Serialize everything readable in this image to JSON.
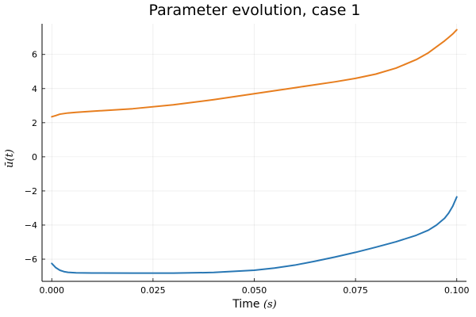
{
  "chart_data": {
    "type": "line",
    "title": "Parameter evolution, case 1",
    "xlabel": "Time ",
    "xlabel_math": "(s)",
    "ylabel": "ū(t)",
    "xlim": [
      -0.0024,
      0.1024
    ],
    "ylim": [
      -7.3,
      7.8
    ],
    "xticks": [
      0.0,
      0.025,
      0.05,
      0.075,
      0.1
    ],
    "xtick_labels": [
      "0.000",
      "0.025",
      "0.050",
      "0.075",
      "0.100"
    ],
    "yticks": [
      -6,
      -4,
      -2,
      0,
      2,
      4,
      6
    ],
    "ytick_labels": [
      "−6",
      "−4",
      "−2",
      "0",
      "2",
      "4",
      "6"
    ],
    "grid": true,
    "legend": "none",
    "series": [
      {
        "color": "#2877b4",
        "x": [
          0.0,
          0.001,
          0.002,
          0.003,
          0.004,
          0.006,
          0.01,
          0.02,
          0.03,
          0.04,
          0.05,
          0.055,
          0.06,
          0.065,
          0.07,
          0.075,
          0.08,
          0.085,
          0.09,
          0.093,
          0.095,
          0.097,
          0.098,
          0.099,
          0.1
        ],
        "y": [
          -6.25,
          -6.5,
          -6.65,
          -6.73,
          -6.77,
          -6.8,
          -6.81,
          -6.82,
          -6.82,
          -6.78,
          -6.65,
          -6.52,
          -6.35,
          -6.12,
          -5.87,
          -5.6,
          -5.3,
          -4.98,
          -4.6,
          -4.3,
          -4.0,
          -3.6,
          -3.3,
          -2.9,
          -2.35
        ]
      },
      {
        "color": "#e77e1f",
        "x": [
          0.0,
          0.001,
          0.002,
          0.004,
          0.006,
          0.01,
          0.02,
          0.03,
          0.04,
          0.05,
          0.06,
          0.07,
          0.075,
          0.08,
          0.085,
          0.09,
          0.093,
          0.095,
          0.097,
          0.098,
          0.099,
          0.1
        ],
        "y": [
          2.35,
          2.42,
          2.5,
          2.57,
          2.61,
          2.67,
          2.82,
          3.05,
          3.35,
          3.7,
          4.05,
          4.4,
          4.6,
          4.85,
          5.2,
          5.7,
          6.1,
          6.45,
          6.8,
          7.0,
          7.2,
          7.45
        ]
      }
    ]
  }
}
